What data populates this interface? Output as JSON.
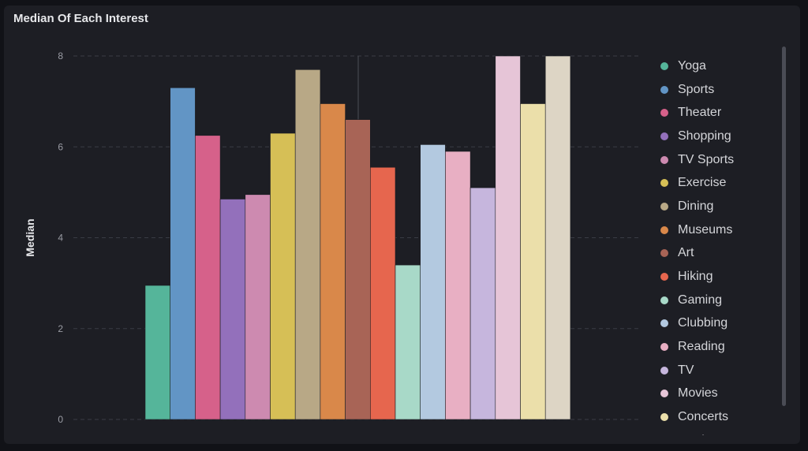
{
  "panel": {
    "title": "Median Of Each Interest"
  },
  "colors": {
    "background": "#111217",
    "panel": "#1d1e24",
    "grid": "#3a3c45",
    "axis_text": "#9a9ca4"
  },
  "chart_data": {
    "type": "bar",
    "title": "Median Of Each Interest",
    "xlabel": "",
    "ylabel": "Median",
    "ylim": [
      0,
      8
    ],
    "yticks": [
      0,
      2,
      4,
      6,
      8
    ],
    "grid": true,
    "legend_position": "right",
    "series": [
      {
        "name": "Yoga",
        "value": 2.95,
        "color": "#55b59a"
      },
      {
        "name": "Sports",
        "value": 7.3,
        "color": "#6295c5"
      },
      {
        "name": "Theater",
        "value": 6.25,
        "color": "#d6618a"
      },
      {
        "name": "Shopping",
        "value": 4.85,
        "color": "#9370bb"
      },
      {
        "name": "TV Sports",
        "value": 4.95,
        "color": "#cd8ab0"
      },
      {
        "name": "Exercise",
        "value": 6.3,
        "color": "#d6bf56"
      },
      {
        "name": "Dining",
        "value": 7.7,
        "color": "#b8a886"
      },
      {
        "name": "Museums",
        "value": 6.95,
        "color": "#d9884a"
      },
      {
        "name": "Art",
        "value": 6.6,
        "color": "#a86456"
      },
      {
        "name": "Hiking",
        "value": 5.55,
        "color": "#e6664e"
      },
      {
        "name": "Gaming",
        "value": 3.4,
        "color": "#a8d9c8"
      },
      {
        "name": "Clubbing",
        "value": 6.05,
        "color": "#b3c9e0"
      },
      {
        "name": "Reading",
        "value": 5.9,
        "color": "#e8afc3"
      },
      {
        "name": "TV",
        "value": 5.1,
        "color": "#c6b6dd"
      },
      {
        "name": "Movies",
        "value": 8.0,
        "color": "#e6c5d7"
      },
      {
        "name": "Concerts",
        "value": 6.95,
        "color": "#ebdfaa"
      },
      {
        "name": "Music",
        "value": 8.0,
        "color": "#ddd5c5"
      }
    ]
  }
}
